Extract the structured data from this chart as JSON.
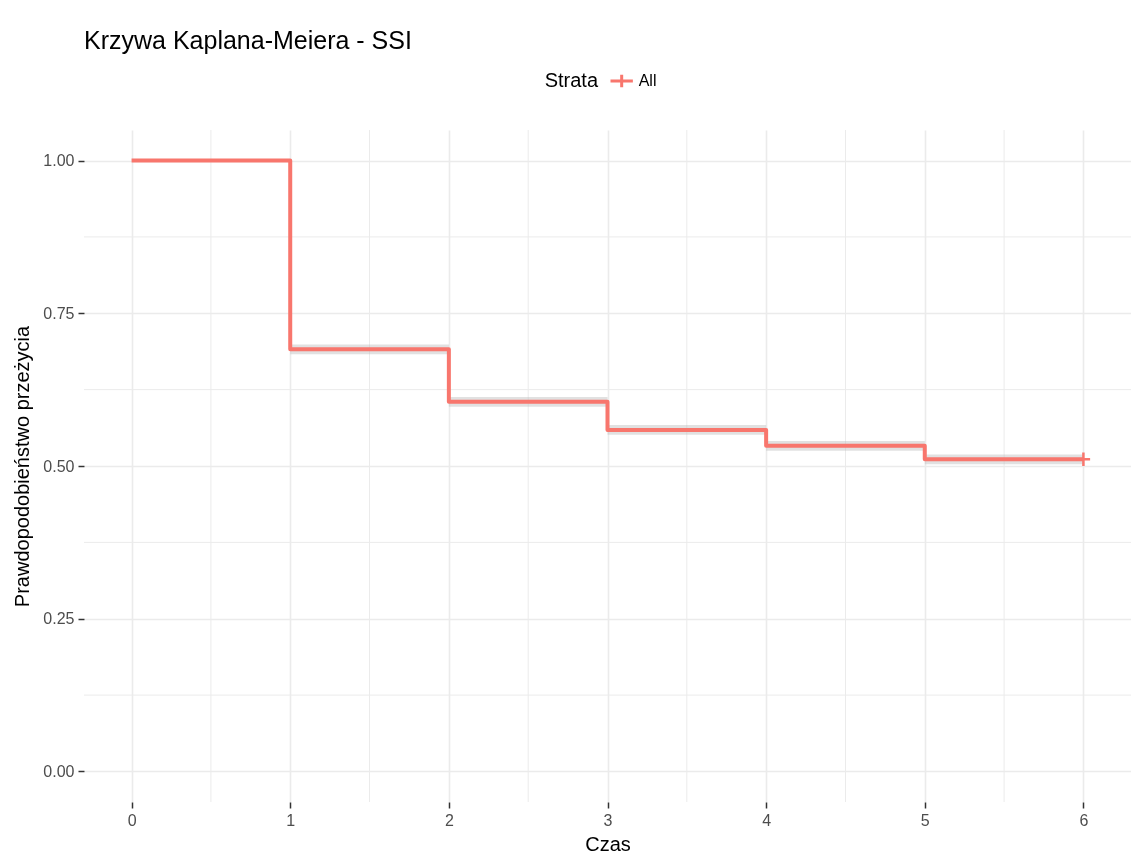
{
  "chart_data": {
    "type": "step",
    "title": "Krzywa Kaplana-Meiera - SSI",
    "xlabel": "Czas",
    "ylabel": "Prawdopodobieństwo przeżycia",
    "legend_title": "Strata",
    "x": [
      0,
      1,
      2,
      3,
      4,
      5,
      6
    ],
    "series": [
      {
        "name": "All",
        "color": "#f8766d",
        "values": [
          1,
          0.691,
          0.605,
          0.559,
          0.533,
          0.511,
          0.511
        ],
        "lower": [
          1,
          0.683,
          0.597,
          0.551,
          0.525,
          0.503,
          0.503
        ],
        "upper": [
          1,
          0.699,
          0.613,
          0.567,
          0.541,
          0.519,
          0.519
        ]
      },
      {
        "type": "scatter",
        "color": "#f8766d",
        "x": [
          6
        ],
        "values": [
          0.511
        ],
        "marker": "cross"
      }
    ],
    "xlim": [
      -0.3,
      6.3
    ],
    "ylim": [
      -0.05,
      1.05
    ],
    "xticks": [
      0,
      1,
      2,
      3,
      4,
      5,
      6
    ],
    "yticks": [
      {
        "value": 0,
        "label": "0.00"
      },
      {
        "value": 0.25,
        "label": "0.25"
      },
      {
        "value": 0.5,
        "label": "0.50"
      },
      {
        "value": 0.75,
        "label": "0.75"
      },
      {
        "value": 1,
        "label": "1.00"
      }
    ],
    "grid": true,
    "legend": "top",
    "line_style": "solid"
  }
}
